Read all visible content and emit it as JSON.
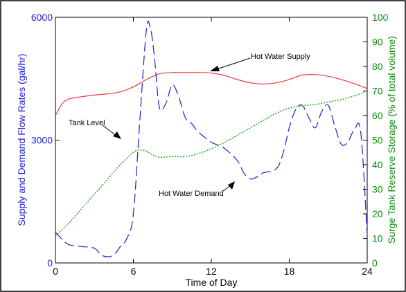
{
  "chart_data": {
    "type": "line",
    "xlabel": "Time of Day",
    "ylabel_left": "Supply and Demand Flow Rates (gal/hr)",
    "ylabel_right": "Surge Tank Reserve Storage (% of total volume)",
    "xlim": [
      0,
      24
    ],
    "ylim_left": [
      0,
      6000
    ],
    "ylim_right": [
      0,
      100
    ],
    "xticks": [
      "0",
      "6",
      "12",
      "18",
      "24"
    ],
    "yticks_left": [
      "0",
      "3000",
      "6000"
    ],
    "yticks_right": [
      "0",
      "10",
      "20",
      "30",
      "40",
      "50",
      "60",
      "70",
      "80",
      "90",
      "100"
    ],
    "grid": false,
    "series": [
      {
        "name": "Hot Water Supply",
        "axis": "left",
        "color": "#e8383d",
        "style": "solid",
        "x": [
          0,
          0.5,
          1,
          2,
          3,
          4,
          5,
          6,
          7,
          8,
          9,
          10,
          11,
          12,
          13,
          14,
          15,
          16,
          17,
          18,
          19,
          20,
          21,
          22,
          23,
          24
        ],
        "values": [
          3600,
          3880,
          4000,
          4060,
          4100,
          4130,
          4180,
          4300,
          4480,
          4620,
          4650,
          4650,
          4650,
          4640,
          4580,
          4480,
          4400,
          4370,
          4400,
          4480,
          4590,
          4600,
          4560,
          4480,
          4380,
          4260
        ]
      },
      {
        "name": "Hot Water Demand",
        "axis": "left",
        "color": "#1a1ad9",
        "style": "dashed",
        "x": [
          0,
          0.5,
          1,
          1.5,
          2,
          3,
          3.5,
          4,
          4.5,
          5,
          5.5,
          6,
          6.5,
          7,
          7.3,
          7.6,
          8,
          8.5,
          9,
          9.5,
          10,
          10.5,
          11,
          12,
          13,
          14,
          14.5,
          15,
          15.5,
          16,
          17,
          17.5,
          18,
          18.5,
          19,
          19.5,
          20,
          20.5,
          21,
          21.5,
          22,
          22.5,
          23,
          23.5,
          24
        ],
        "values": [
          750,
          580,
          450,
          420,
          400,
          360,
          200,
          150,
          200,
          400,
          600,
          1200,
          3500,
          5700,
          5750,
          5100,
          3800,
          3900,
          4350,
          4050,
          3550,
          3400,
          3200,
          2950,
          2800,
          2500,
          2200,
          2050,
          2100,
          2200,
          2300,
          2650,
          3300,
          3750,
          3850,
          3550,
          3300,
          3700,
          3850,
          3350,
          2900,
          2950,
          3250,
          3200,
          700
        ]
      },
      {
        "name": "Tank Level",
        "axis": "right",
        "color": "#0a9a0a",
        "style": "dotted",
        "x": [
          0,
          1,
          2,
          3,
          4,
          5,
          6,
          6.5,
          7,
          7.5,
          8,
          9,
          10,
          11,
          12,
          13,
          14,
          15,
          16,
          17,
          18,
          19,
          20,
          21,
          22,
          23,
          24
        ],
        "values": [
          11,
          16,
          22,
          28,
          34,
          40,
          45,
          46,
          45.5,
          44,
          43,
          43.3,
          43.3,
          44.5,
          46.5,
          49,
          52,
          55,
          58,
          61,
          63,
          64,
          64.5,
          65.5,
          66.5,
          68,
          70
        ]
      }
    ],
    "annotations": [
      {
        "text": "Hot Water Supply",
        "points_to": "Hot Water Supply"
      },
      {
        "text": "Tank Level",
        "points_to": "Tank Level"
      },
      {
        "text": "Hot Water Demand",
        "points_to": "Hot Water Demand"
      }
    ],
    "colors": {
      "left_axis": "#1a1ad9",
      "right_axis": "#0a8a0a",
      "frame": "#000000"
    }
  }
}
